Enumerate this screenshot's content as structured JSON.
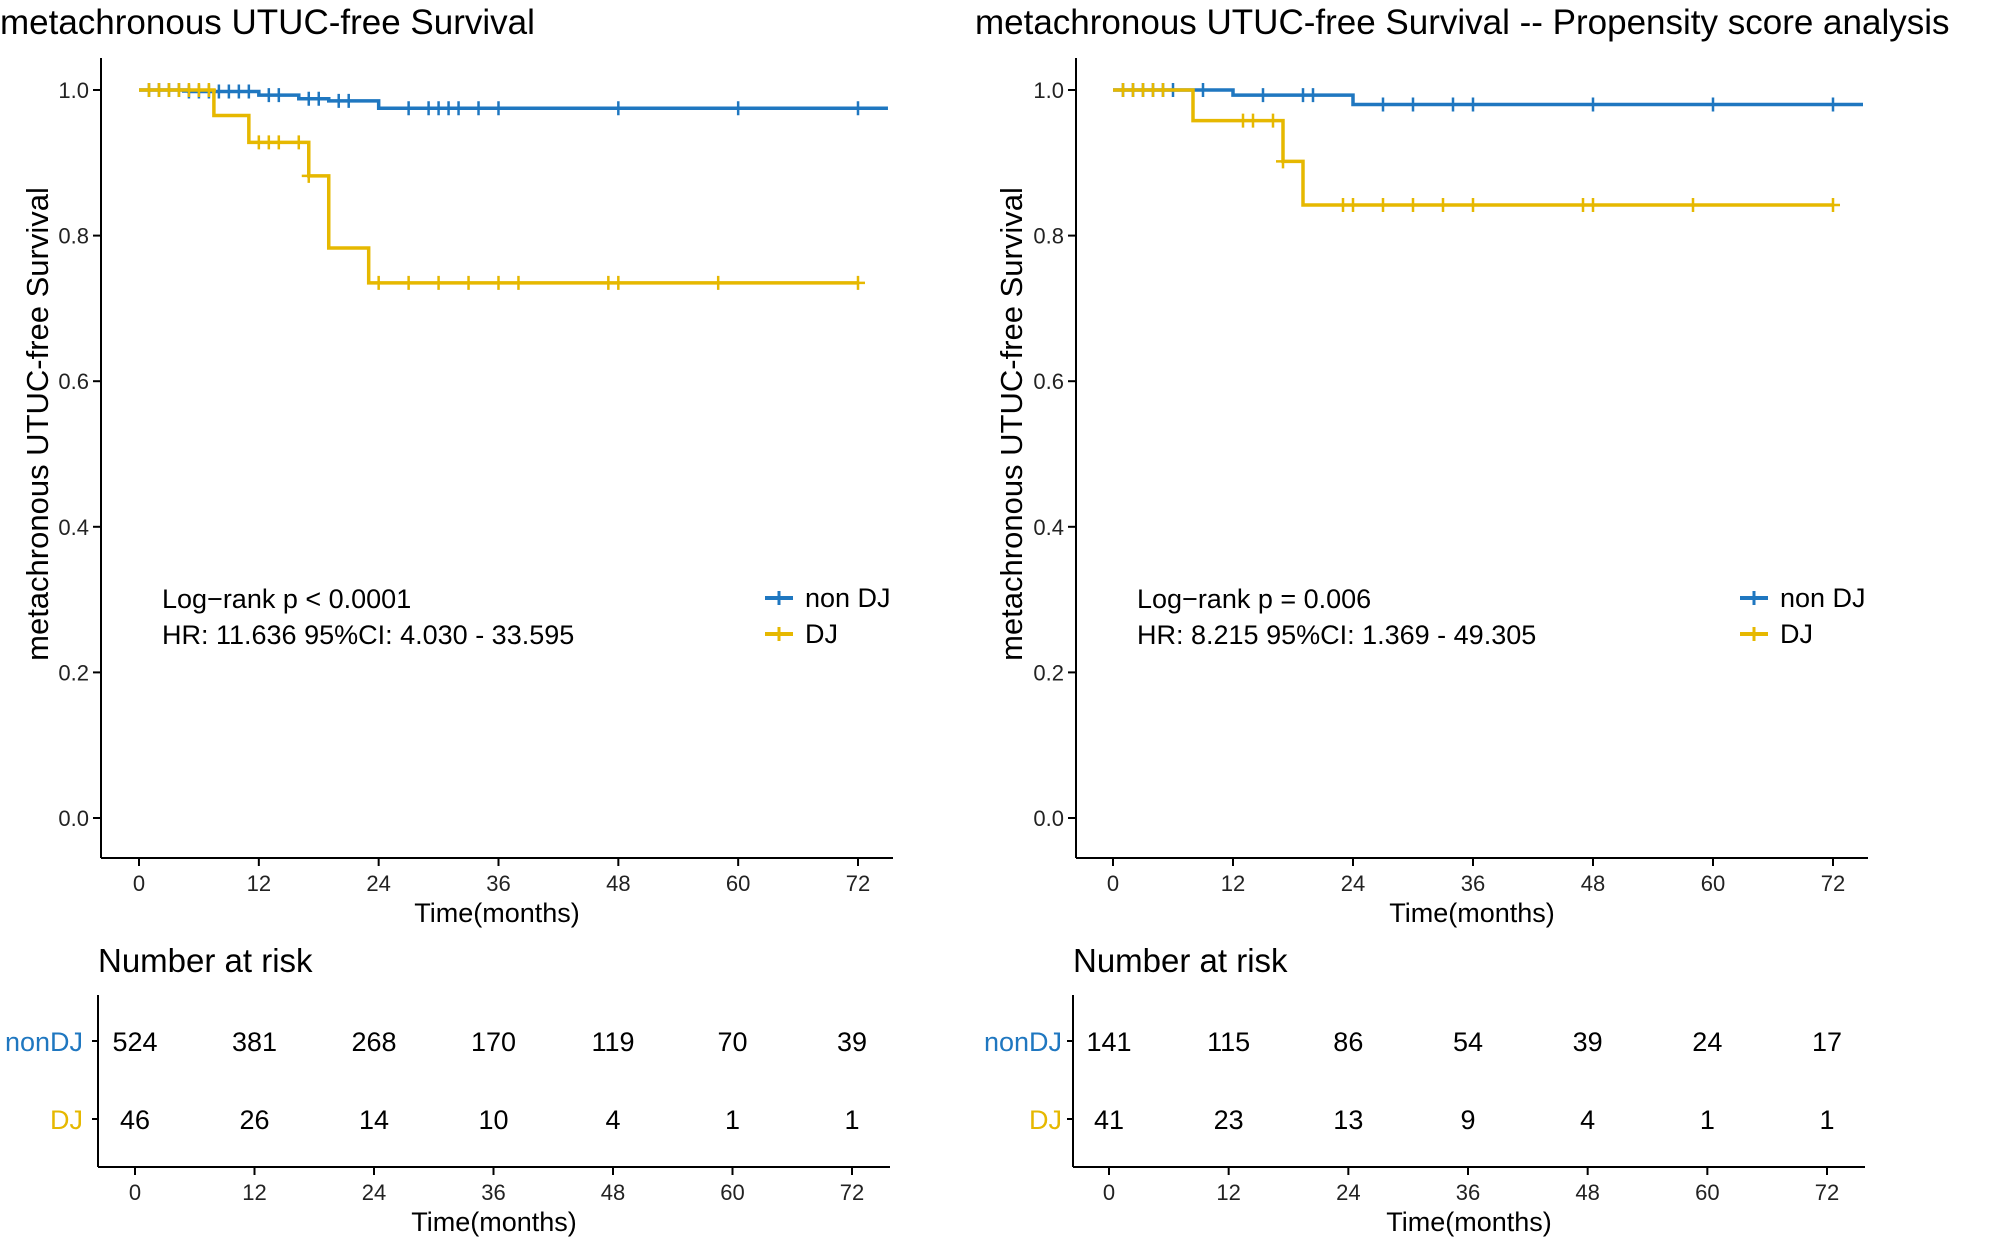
{
  "chart_data": [
    {
      "type": "line",
      "title": "metachronous UTUC-free Survival",
      "xlabel": "Time(months)",
      "ylabel": "metachronous UTUC-free Survival",
      "xlim": [
        0,
        75
      ],
      "ylim": [
        0,
        1
      ],
      "x_ticks": [
        "0",
        "12",
        "24",
        "36",
        "48",
        "60",
        "72"
      ],
      "y_ticks": [
        "0.0",
        "0.2",
        "0.4",
        "0.6",
        "0.8",
        "1.0"
      ],
      "grid": false,
      "legend_position": "right",
      "annotation": [
        "Log−rank   p < 0.0001",
        "HR: 11.636  95%CI: 4.030 - 33.595"
      ],
      "series": [
        {
          "name": "non DJ",
          "color": "#1f77c0",
          "steps": [
            [
              0,
              1.0
            ],
            [
              5,
              0.998
            ],
            [
              12,
              0.993
            ],
            [
              16,
              0.988
            ],
            [
              19,
              0.985
            ],
            [
              24,
              0.975
            ],
            [
              75,
              0.975
            ]
          ],
          "censor_times": [
            1,
            2,
            3,
            4,
            5,
            6,
            7,
            8,
            9,
            10,
            11,
            13,
            14,
            17,
            18,
            20,
            21,
            27,
            29,
            30,
            31,
            32,
            34,
            36,
            48,
            60,
            72
          ]
        },
        {
          "name": "DJ",
          "color": "#e6b800",
          "steps": [
            [
              0,
              1.0
            ],
            [
              7.5,
              0.965
            ],
            [
              11,
              0.928
            ],
            [
              17,
              0.882
            ],
            [
              19,
              0.783
            ],
            [
              23,
              0.735
            ],
            [
              72,
              0.735
            ]
          ],
          "censor_times": [
            1,
            2,
            3,
            4,
            5,
            6,
            7,
            12,
            13,
            14,
            16,
            17,
            24,
            27,
            30,
            33,
            36,
            38,
            47,
            48,
            58,
            72
          ]
        }
      ],
      "risk_table": {
        "title": "Number at risk",
        "xlabel": "Time(months)",
        "rows": [
          {
            "label": "nonDJ",
            "color": "#1f77c0",
            "values": [
              "524",
              "381",
              "268",
              "170",
              "119",
              "70",
              "39"
            ]
          },
          {
            "label": "DJ",
            "color": "#e6b800",
            "values": [
              "46",
              "26",
              "14",
              "10",
              "4",
              "1",
              "1"
            ]
          }
        ]
      }
    },
    {
      "type": "line",
      "title": "metachronous UTUC-free Survival -- Propensity score analysis",
      "xlabel": "Time(months)",
      "ylabel": "metachronous UTUC-free Survival",
      "xlim": [
        0,
        75
      ],
      "ylim": [
        0,
        1
      ],
      "x_ticks": [
        "0",
        "12",
        "24",
        "36",
        "48",
        "60",
        "72"
      ],
      "y_ticks": [
        "0.0",
        "0.2",
        "0.4",
        "0.6",
        "0.8",
        "1.0"
      ],
      "grid": false,
      "legend_position": "right",
      "annotation": [
        "Log−rank  p = 0.006",
        "HR: 8.215  95%CI: 1.369 - 49.305"
      ],
      "series": [
        {
          "name": "non DJ",
          "color": "#1f77c0",
          "steps": [
            [
              0,
              1.0
            ],
            [
              12,
              0.993
            ],
            [
              24,
              0.98
            ],
            [
              75,
              0.98
            ]
          ],
          "censor_times": [
            1,
            2,
            3,
            4,
            5,
            6,
            9,
            15,
            19,
            20,
            27,
            30,
            34,
            36,
            48,
            60,
            72
          ]
        },
        {
          "name": "DJ",
          "color": "#e6b800",
          "steps": [
            [
              0,
              1.0
            ],
            [
              8,
              0.958
            ],
            [
              17,
              0.902
            ],
            [
              19,
              0.842
            ],
            [
              72,
              0.842
            ]
          ],
          "censor_times": [
            1,
            2,
            3,
            4,
            5,
            13,
            14,
            16,
            17,
            23,
            24,
            27,
            30,
            33,
            36,
            47,
            48,
            58,
            72
          ]
        }
      ],
      "risk_table": {
        "title": "Number at risk",
        "xlabel": "Time(months)",
        "rows": [
          {
            "label": "nonDJ",
            "color": "#1f77c0",
            "values": [
              "141",
              "115",
              "86",
              "54",
              "39",
              "24",
              "17"
            ]
          },
          {
            "label": "DJ",
            "color": "#e6b800",
            "values": [
              "41",
              "23",
              "13",
              "9",
              "4",
              "1",
              "1"
            ]
          }
        ]
      }
    }
  ]
}
